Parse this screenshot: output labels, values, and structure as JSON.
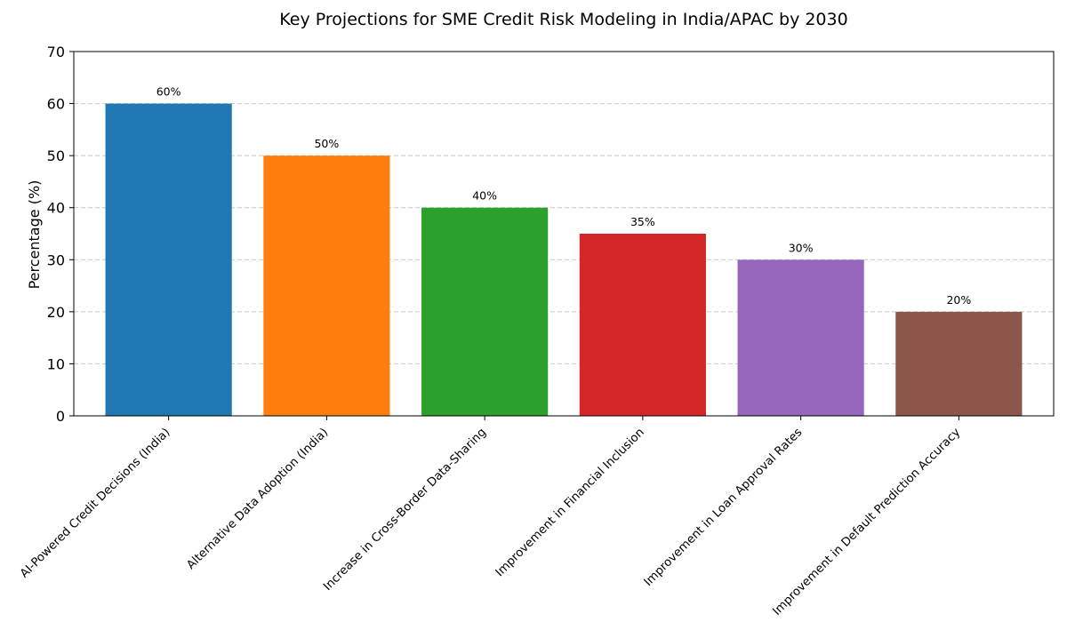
{
  "chart_data": {
    "type": "bar",
    "title": "Key Projections for SME Credit Risk Modeling in India/APAC by 2030",
    "xlabel": "",
    "ylabel": "Percentage (%)",
    "ylim": [
      0,
      70
    ],
    "yticks": [
      0,
      10,
      20,
      30,
      40,
      50,
      60,
      70
    ],
    "grid": true,
    "categories": [
      "AI-Powered Credit Decisions (India)",
      "Alternative Data Adoption (India)",
      "Increase in Cross-Border Data-Sharing",
      "Improvement in Financial Inclusion",
      "Improvement in Loan Approval Rates",
      "Improvement in Default Prediction Accuracy"
    ],
    "values": [
      60,
      50,
      40,
      35,
      30,
      20
    ],
    "data_labels": [
      "60%",
      "50%",
      "40%",
      "35%",
      "30%",
      "20%"
    ],
    "colors": [
      "#1f77b4",
      "#ff7f0e",
      "#2ca02c",
      "#d62728",
      "#9467bd",
      "#8c564b"
    ]
  }
}
